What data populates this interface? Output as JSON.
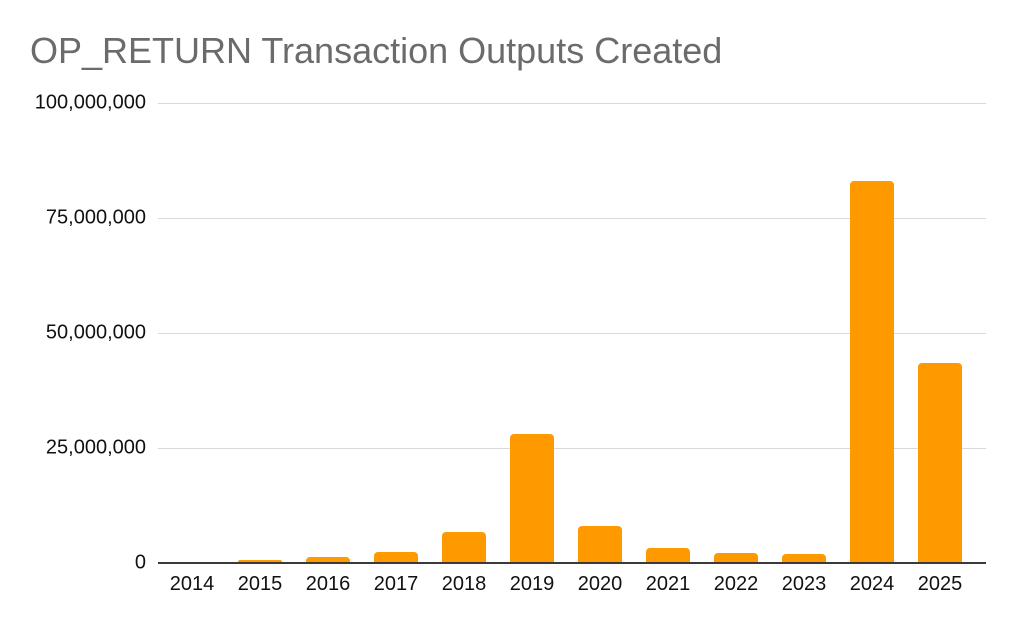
{
  "chart_data": {
    "type": "bar",
    "title": "OP_RETURN Transaction Outputs Created",
    "categories": [
      "2014",
      "2015",
      "2016",
      "2017",
      "2018",
      "2019",
      "2020",
      "2021",
      "2022",
      "2023",
      "2024",
      "2025"
    ],
    "values": [
      0,
      600000,
      1200000,
      2400000,
      6800000,
      28000000,
      8000000,
      3200000,
      2100000,
      2000000,
      83000000,
      43500000
    ],
    "xlabel": "",
    "ylabel": "",
    "ylim": [
      0,
      100000000
    ],
    "yticks": [
      0,
      25000000,
      50000000,
      75000000,
      100000000
    ],
    "ytick_labels": [
      "0",
      "25,000,000",
      "50,000,000",
      "75,000,000",
      "100,000,000"
    ],
    "grid": true,
    "legend": false,
    "bar_color": "#FF9900",
    "gridline_color": "#dadada",
    "axis_line_color": "#3a3a3a",
    "title_color": "#6b6b6b",
    "label_color": "#111111",
    "background_color": "#ffffff"
  }
}
